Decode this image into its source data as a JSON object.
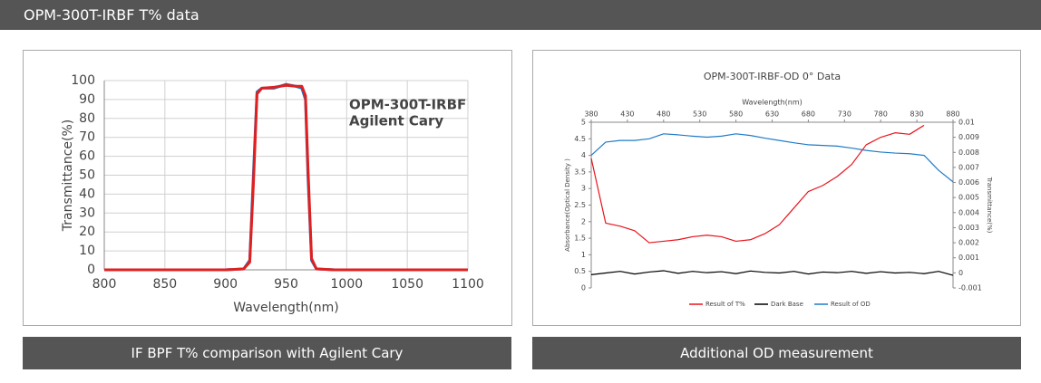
{
  "header": {
    "title": "OPM-300T-IRBF T% data"
  },
  "captions": [
    "IF BPF T% comparison with Agilent Cary",
    "Additional OD measurement"
  ],
  "chart_data": [
    {
      "type": "line",
      "xlabel": "Wavelength(nm)",
      "ylabel": "Transmittance(%)",
      "x": [
        800,
        900,
        915,
        920,
        923,
        926,
        930,
        940,
        950,
        958,
        963,
        966,
        968,
        971,
        975,
        990,
        1100
      ],
      "xlim": [
        800,
        1100
      ],
      "xticks": [
        800,
        850,
        900,
        950,
        1000,
        1050,
        1100
      ],
      "ylim": [
        0,
        100
      ],
      "yticks": [
        0,
        10,
        20,
        30,
        40,
        50,
        60,
        70,
        80,
        90,
        100
      ],
      "grid": true,
      "legend": "top-right",
      "series": [
        {
          "name": "OPM-300T-IRBF",
          "color": "#1f6fc0",
          "values": [
            0,
            0,
            0.5,
            5,
            50,
            94,
            96,
            96,
            98,
            97,
            96,
            90,
            50,
            5,
            0.5,
            0,
            0
          ]
        },
        {
          "name": "Agilent Cary",
          "color": "#e02020",
          "values": [
            0,
            0,
            0.5,
            4,
            45,
            93,
            96,
            96.5,
            97.5,
            97,
            97,
            92,
            55,
            6,
            0.5,
            0,
            0
          ]
        }
      ]
    },
    {
      "type": "line",
      "title": "OPM-300T-IRBF-OD 0° Data",
      "xlabel": "Wavelength(nm)",
      "ylabel": "Absorbance(Optical Density )",
      "y2label": "Transmittance(%)",
      "x_axis_position": "top",
      "grid": false,
      "legend": "bottom",
      "x": [
        380,
        400,
        420,
        440,
        460,
        480,
        500,
        520,
        540,
        560,
        580,
        600,
        620,
        640,
        660,
        680,
        700,
        720,
        740,
        760,
        780,
        800,
        820,
        840,
        860,
        880
      ],
      "xlim": [
        380,
        880
      ],
      "xticks": [
        380,
        430,
        480,
        530,
        580,
        630,
        680,
        730,
        780,
        830,
        880
      ],
      "ylim": [
        0,
        5
      ],
      "yticks": [
        0,
        0.5,
        1,
        1.5,
        2,
        2.5,
        3,
        3.5,
        4,
        4.5,
        5
      ],
      "y2lim": [
        -0.001,
        0.01
      ],
      "y2ticks": [
        -0.001,
        0,
        0.001,
        0.002,
        0.003,
        0.004,
        0.005,
        0.006,
        0.007,
        0.008,
        0.009,
        0.01
      ],
      "series": [
        {
          "name": "Result of T%",
          "color": "#e8131b",
          "axis": "y2",
          "values": [
            0.0076,
            0.0033,
            0.0031,
            0.0028,
            0.002,
            0.0021,
            0.0022,
            0.0024,
            0.0025,
            0.0024,
            0.0021,
            0.0022,
            0.0026,
            0.0032,
            0.0043,
            0.0054,
            0.0058,
            0.0064,
            0.0072,
            0.0085,
            0.009,
            0.0093,
            0.0092,
            0.0098,
            null,
            null
          ]
        },
        {
          "name": "Dark Base",
          "color": "#000000",
          "values": [
            0.4,
            0.45,
            0.5,
            0.42,
            0.48,
            0.52,
            0.44,
            0.5,
            0.46,
            0.49,
            0.43,
            0.51,
            0.47,
            0.45,
            0.5,
            0.42,
            0.48,
            0.46,
            0.5,
            0.44,
            0.49,
            0.45,
            0.47,
            0.43,
            0.5,
            0.38
          ]
        },
        {
          "name": "Result of OD",
          "color": "#1f7bc7",
          "values": [
            4.0,
            4.4,
            4.45,
            4.45,
            4.5,
            4.65,
            4.62,
            4.58,
            4.55,
            4.58,
            4.65,
            4.6,
            4.52,
            4.45,
            4.38,
            4.32,
            4.3,
            4.28,
            4.22,
            4.15,
            4.1,
            4.07,
            4.05,
            4.0,
            3.55,
            3.2
          ]
        }
      ]
    }
  ]
}
